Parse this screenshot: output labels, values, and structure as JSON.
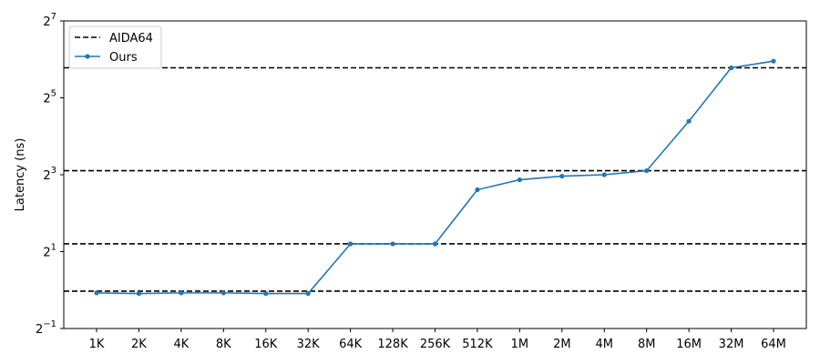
{
  "chart_data": {
    "type": "line",
    "ylabel": "Latency (ns)",
    "y_scale": "log2",
    "ylim": [
      0.5,
      128
    ],
    "y_ticks": [
      {
        "value": 0.5,
        "base": "2",
        "exp": "−1"
      },
      {
        "value": 2,
        "base": "2",
        "exp": "1"
      },
      {
        "value": 8,
        "base": "2",
        "exp": "3"
      },
      {
        "value": 32,
        "base": "2",
        "exp": "5"
      },
      {
        "value": 128,
        "base": "2",
        "exp": "7"
      }
    ],
    "categories": [
      "1K",
      "2K",
      "4K",
      "8K",
      "16K",
      "32K",
      "64K",
      "128K",
      "256K",
      "512K",
      "1M",
      "2M",
      "4M",
      "8M",
      "16M",
      "32M",
      "64M"
    ],
    "series": [
      {
        "name": "Ours",
        "color": "#1f77b4",
        "style": "solid-with-dot-markers",
        "values": [
          0.95,
          0.94,
          0.95,
          0.95,
          0.94,
          0.94,
          2.3,
          2.3,
          2.3,
          6.1,
          7.3,
          7.8,
          8.0,
          8.6,
          21,
          55,
          62
        ]
      }
    ],
    "reference_lines": {
      "name": "AIDA64",
      "color": "#000000",
      "style": "dashed",
      "values": [
        0.98,
        2.3,
        8.6,
        55
      ]
    },
    "legend": {
      "position": "top-left",
      "entries": [
        {
          "label": "AIDA64",
          "marker": "dashed-line"
        },
        {
          "label": "Ours",
          "marker": "line-dot"
        }
      ]
    },
    "grid": false
  }
}
